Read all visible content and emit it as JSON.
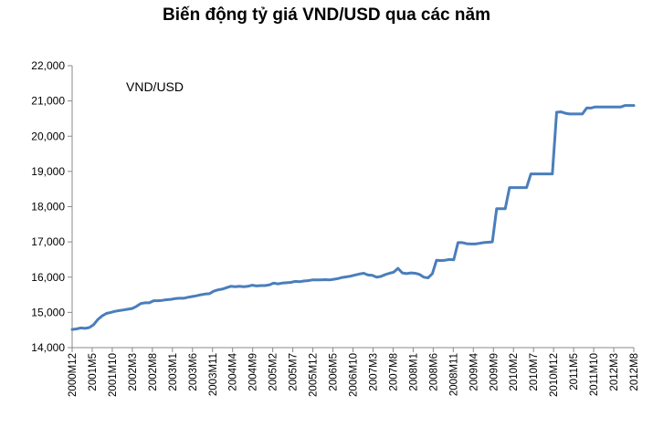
{
  "chart_data": {
    "type": "line",
    "title": "Biến động tỷ giá VND/USD qua các năm",
    "xlabel": "",
    "ylabel": "",
    "ylim": [
      14000,
      22000
    ],
    "yticks": [
      "14,000",
      "15,000",
      "16,000",
      "17,000",
      "18,000",
      "19,000",
      "20,000",
      "21,000",
      "22,000"
    ],
    "grid": false,
    "x_tick_labels": [
      "2000M12",
      "2001M5",
      "2001M10",
      "2002M3",
      "2002M8",
      "2003M1",
      "2003M6",
      "2003M11",
      "2004M4",
      "2004M9",
      "2005M2",
      "2005M7",
      "2005M12",
      "2006M5",
      "2006M10",
      "2007M3",
      "2007M8",
      "2008M1",
      "2008M6",
      "2008M11",
      "2009M4",
      "2009M9",
      "2010M2",
      "2010M7",
      "2010M12",
      "2011M5",
      "2011M10",
      "2012M3",
      "2012M8"
    ],
    "series": [
      {
        "name": "VND/USD",
        "color": "#4a7ebb",
        "points": [
          [
            0,
            14514
          ],
          [
            1,
            14530
          ],
          [
            2,
            14560
          ],
          [
            3,
            14545
          ],
          [
            4,
            14570
          ],
          [
            5,
            14650
          ],
          [
            6,
            14800
          ],
          [
            7,
            14900
          ],
          [
            8,
            14970
          ],
          [
            9,
            15000
          ],
          [
            10,
            15030
          ],
          [
            11,
            15050
          ],
          [
            12,
            15070
          ],
          [
            13,
            15090
          ],
          [
            14,
            15110
          ],
          [
            15,
            15170
          ],
          [
            16,
            15250
          ],
          [
            17,
            15270
          ],
          [
            18,
            15270
          ],
          [
            19,
            15330
          ],
          [
            20,
            15330
          ],
          [
            21,
            15340
          ],
          [
            22,
            15360
          ],
          [
            23,
            15370
          ],
          [
            24,
            15390
          ],
          [
            25,
            15400
          ],
          [
            26,
            15400
          ],
          [
            27,
            15430
          ],
          [
            28,
            15450
          ],
          [
            29,
            15470
          ],
          [
            30,
            15500
          ],
          [
            31,
            15520
          ],
          [
            32,
            15530
          ],
          [
            33,
            15600
          ],
          [
            34,
            15640
          ],
          [
            35,
            15660
          ],
          [
            36,
            15700
          ],
          [
            37,
            15740
          ],
          [
            38,
            15730
          ],
          [
            39,
            15740
          ],
          [
            40,
            15730
          ],
          [
            41,
            15740
          ],
          [
            42,
            15770
          ],
          [
            43,
            15750
          ],
          [
            44,
            15760
          ],
          [
            45,
            15760
          ],
          [
            46,
            15780
          ],
          [
            47,
            15830
          ],
          [
            48,
            15810
          ],
          [
            49,
            15830
          ],
          [
            50,
            15840
          ],
          [
            51,
            15850
          ],
          [
            52,
            15880
          ],
          [
            53,
            15870
          ],
          [
            54,
            15890
          ],
          [
            55,
            15900
          ],
          [
            56,
            15920
          ],
          [
            57,
            15920
          ],
          [
            58,
            15920
          ],
          [
            59,
            15930
          ],
          [
            60,
            15920
          ],
          [
            61,
            15940
          ],
          [
            62,
            15960
          ],
          [
            63,
            15990
          ],
          [
            64,
            16010
          ],
          [
            65,
            16030
          ],
          [
            66,
            16060
          ],
          [
            67,
            16090
          ],
          [
            68,
            16110
          ],
          [
            69,
            16060
          ],
          [
            70,
            16050
          ],
          [
            71,
            16000
          ],
          [
            72,
            16020
          ],
          [
            73,
            16070
          ],
          [
            74,
            16110
          ],
          [
            75,
            16140
          ],
          [
            76,
            16250
          ],
          [
            77,
            16120
          ],
          [
            78,
            16100
          ],
          [
            79,
            16120
          ],
          [
            80,
            16110
          ],
          [
            81,
            16080
          ],
          [
            82,
            16000
          ],
          [
            83,
            15980
          ],
          [
            84,
            16100
          ],
          [
            85,
            16480
          ],
          [
            86,
            16470
          ],
          [
            87,
            16480
          ],
          [
            88,
            16500
          ],
          [
            89,
            16490
          ],
          [
            90,
            16980
          ],
          [
            91,
            16980
          ],
          [
            92,
            16950
          ],
          [
            93,
            16940
          ],
          [
            94,
            16940
          ],
          [
            95,
            16960
          ],
          [
            96,
            16980
          ],
          [
            97,
            16990
          ],
          [
            98,
            17000
          ],
          [
            99,
            17940
          ],
          [
            100,
            17940
          ],
          [
            101,
            17940
          ],
          [
            102,
            18540
          ],
          [
            103,
            18540
          ],
          [
            104,
            18540
          ],
          [
            105,
            18540
          ],
          [
            106,
            18540
          ],
          [
            107,
            18930
          ],
          [
            108,
            18930
          ],
          [
            109,
            18930
          ],
          [
            110,
            18930
          ],
          [
            111,
            18930
          ],
          [
            112,
            18930
          ],
          [
            113,
            20680
          ],
          [
            114,
            20690
          ],
          [
            115,
            20650
          ],
          [
            116,
            20630
          ],
          [
            117,
            20630
          ],
          [
            118,
            20630
          ],
          [
            119,
            20630
          ],
          [
            120,
            20800
          ],
          [
            121,
            20800
          ],
          [
            122,
            20830
          ],
          [
            123,
            20830
          ],
          [
            124,
            20830
          ],
          [
            125,
            20830
          ],
          [
            126,
            20830
          ],
          [
            127,
            20830
          ],
          [
            128,
            20830
          ],
          [
            129,
            20870
          ],
          [
            130,
            20870
          ],
          [
            131,
            20870
          ]
        ]
      }
    ]
  }
}
